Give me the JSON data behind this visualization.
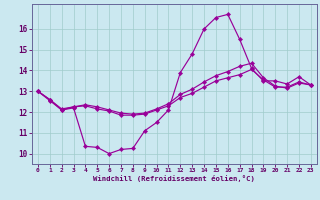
{
  "background_color": "#cbe8f0",
  "grid_color": "#a0cccc",
  "line_color": "#990099",
  "xlabel": "Windchill (Refroidissement éolien,°C)",
  "tick_color": "#660066",
  "spine_color": "#666699",
  "xlim": [
    -0.5,
    23.5
  ],
  "ylim": [
    9.5,
    17.2
  ],
  "yticks": [
    10,
    11,
    12,
    13,
    14,
    15,
    16
  ],
  "xticks": [
    0,
    1,
    2,
    3,
    4,
    5,
    6,
    7,
    8,
    9,
    10,
    11,
    12,
    13,
    14,
    15,
    16,
    17,
    18,
    19,
    20,
    21,
    22,
    23
  ],
  "line1_x": [
    0,
    1,
    2,
    3,
    4,
    5,
    6,
    7,
    8,
    9,
    10,
    11,
    12,
    13,
    14,
    15,
    16,
    17,
    18,
    19,
    20,
    21,
    22,
    23
  ],
  "line1_y": [
    13.0,
    12.6,
    12.1,
    12.2,
    10.35,
    10.3,
    10.0,
    10.2,
    10.25,
    11.1,
    11.5,
    12.1,
    13.9,
    14.8,
    16.0,
    16.55,
    16.7,
    15.5,
    14.1,
    13.5,
    13.5,
    13.35,
    13.7,
    13.3
  ],
  "line2_x": [
    0,
    1,
    2,
    3,
    4,
    5,
    6,
    7,
    8,
    9,
    10,
    11,
    12,
    13,
    14,
    15,
    16,
    17,
    18,
    19,
    20,
    21,
    22,
    23
  ],
  "line2_y": [
    13.0,
    12.6,
    12.15,
    12.25,
    12.3,
    12.15,
    12.05,
    11.85,
    11.85,
    11.9,
    12.1,
    12.3,
    12.7,
    12.9,
    13.2,
    13.5,
    13.65,
    13.8,
    14.05,
    13.55,
    13.2,
    13.2,
    13.45,
    13.3
  ],
  "line3_x": [
    0,
    1,
    2,
    3,
    4,
    5,
    6,
    7,
    8,
    9,
    10,
    11,
    12,
    13,
    14,
    15,
    16,
    17,
    18,
    19,
    20,
    21,
    22,
    23
  ],
  "line3_y": [
    13.0,
    12.55,
    12.1,
    12.25,
    12.35,
    12.25,
    12.1,
    11.95,
    11.9,
    11.95,
    12.15,
    12.4,
    12.85,
    13.1,
    13.45,
    13.75,
    13.95,
    14.2,
    14.35,
    13.65,
    13.25,
    13.15,
    13.4,
    13.3
  ]
}
